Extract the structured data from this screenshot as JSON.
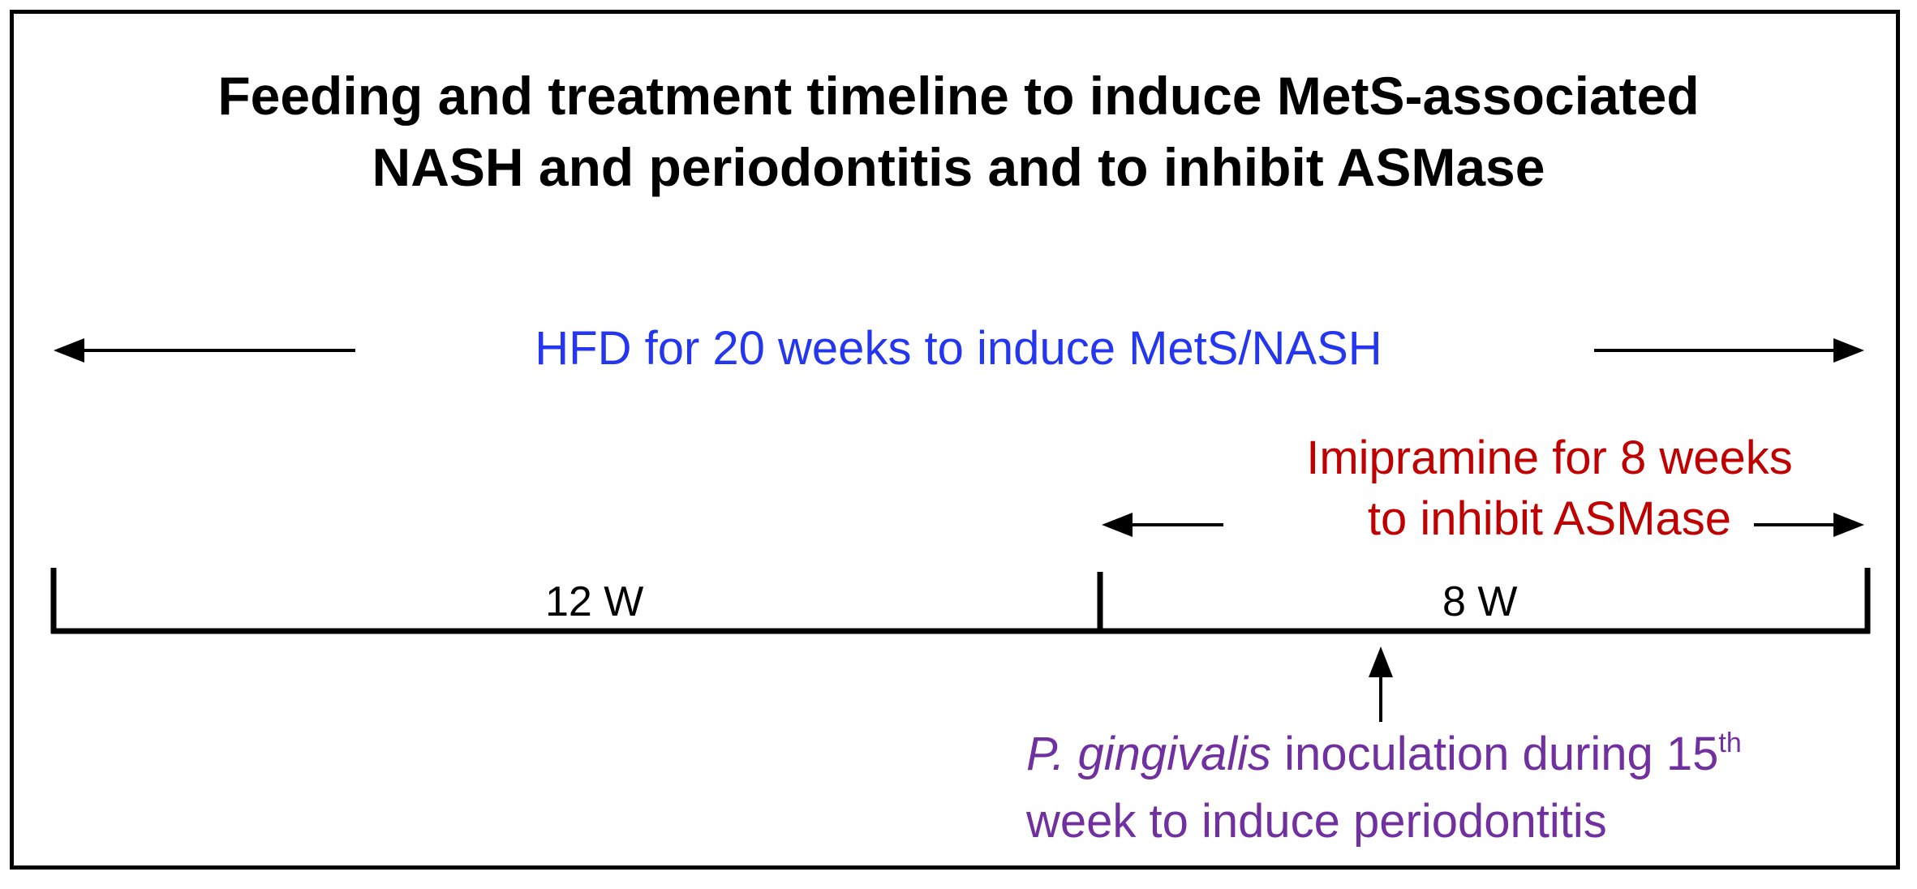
{
  "title": {
    "line1": "Feeding and treatment timeline to induce MetS-associated",
    "line2": "NASH and periodontitis and to inhibit ASMase"
  },
  "hfd": {
    "label": "HFD for 20 weeks to induce MetS/NASH",
    "color": "#2436f0"
  },
  "imipramine": {
    "line1": "Imipramine for 8 weeks",
    "line2": "to inhibit ASMase",
    "color": "#c00000"
  },
  "timeline": {
    "segment1_label": "12 W",
    "segment2_label": "8 W"
  },
  "inoculation": {
    "species": "P. gingivalis",
    "line1_rest": " inoculation during 15",
    "superscript": "th",
    "line2": "week to induce periodontitis",
    "color": "#7030a0"
  }
}
